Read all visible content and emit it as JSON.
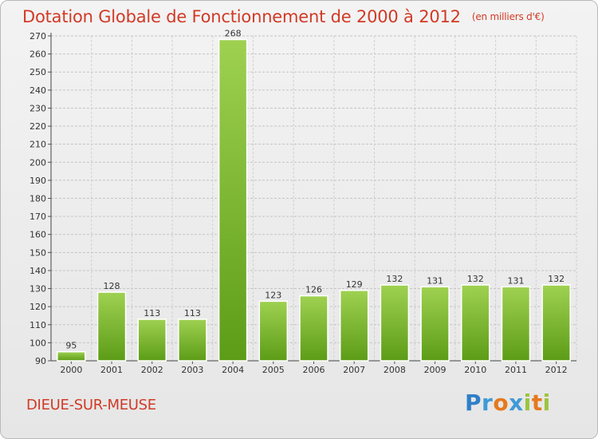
{
  "header": {
    "title": "Dotation Globale de Fonctionnement de 2000 à 2012",
    "unit": "(en milliers d'€)"
  },
  "footer": {
    "commune": "DIEUE-SUR-MEUSE",
    "logo_text": "Proxiti"
  },
  "colors": {
    "title": "#d13a26",
    "bar_top": "#9fd151",
    "bar_bottom": "#5c9c17"
  },
  "chart_data": {
    "type": "bar",
    "title": "Dotation Globale de Fonctionnement de 2000 à 2012",
    "subtitle": "(en milliers d'€)",
    "categories": [
      "2000",
      "2001",
      "2002",
      "2003",
      "2004",
      "2005",
      "2006",
      "2007",
      "2008",
      "2009",
      "2010",
      "2011",
      "2012"
    ],
    "values": [
      95,
      128,
      113,
      113,
      268,
      123,
      126,
      129,
      132,
      131,
      132,
      131,
      132
    ],
    "ylim": [
      90,
      270
    ],
    "yticks": [
      90,
      100,
      110,
      120,
      130,
      140,
      150,
      160,
      170,
      180,
      190,
      200,
      210,
      220,
      230,
      240,
      250,
      260,
      270
    ],
    "grid": true,
    "xlabel": "",
    "ylabel": ""
  }
}
